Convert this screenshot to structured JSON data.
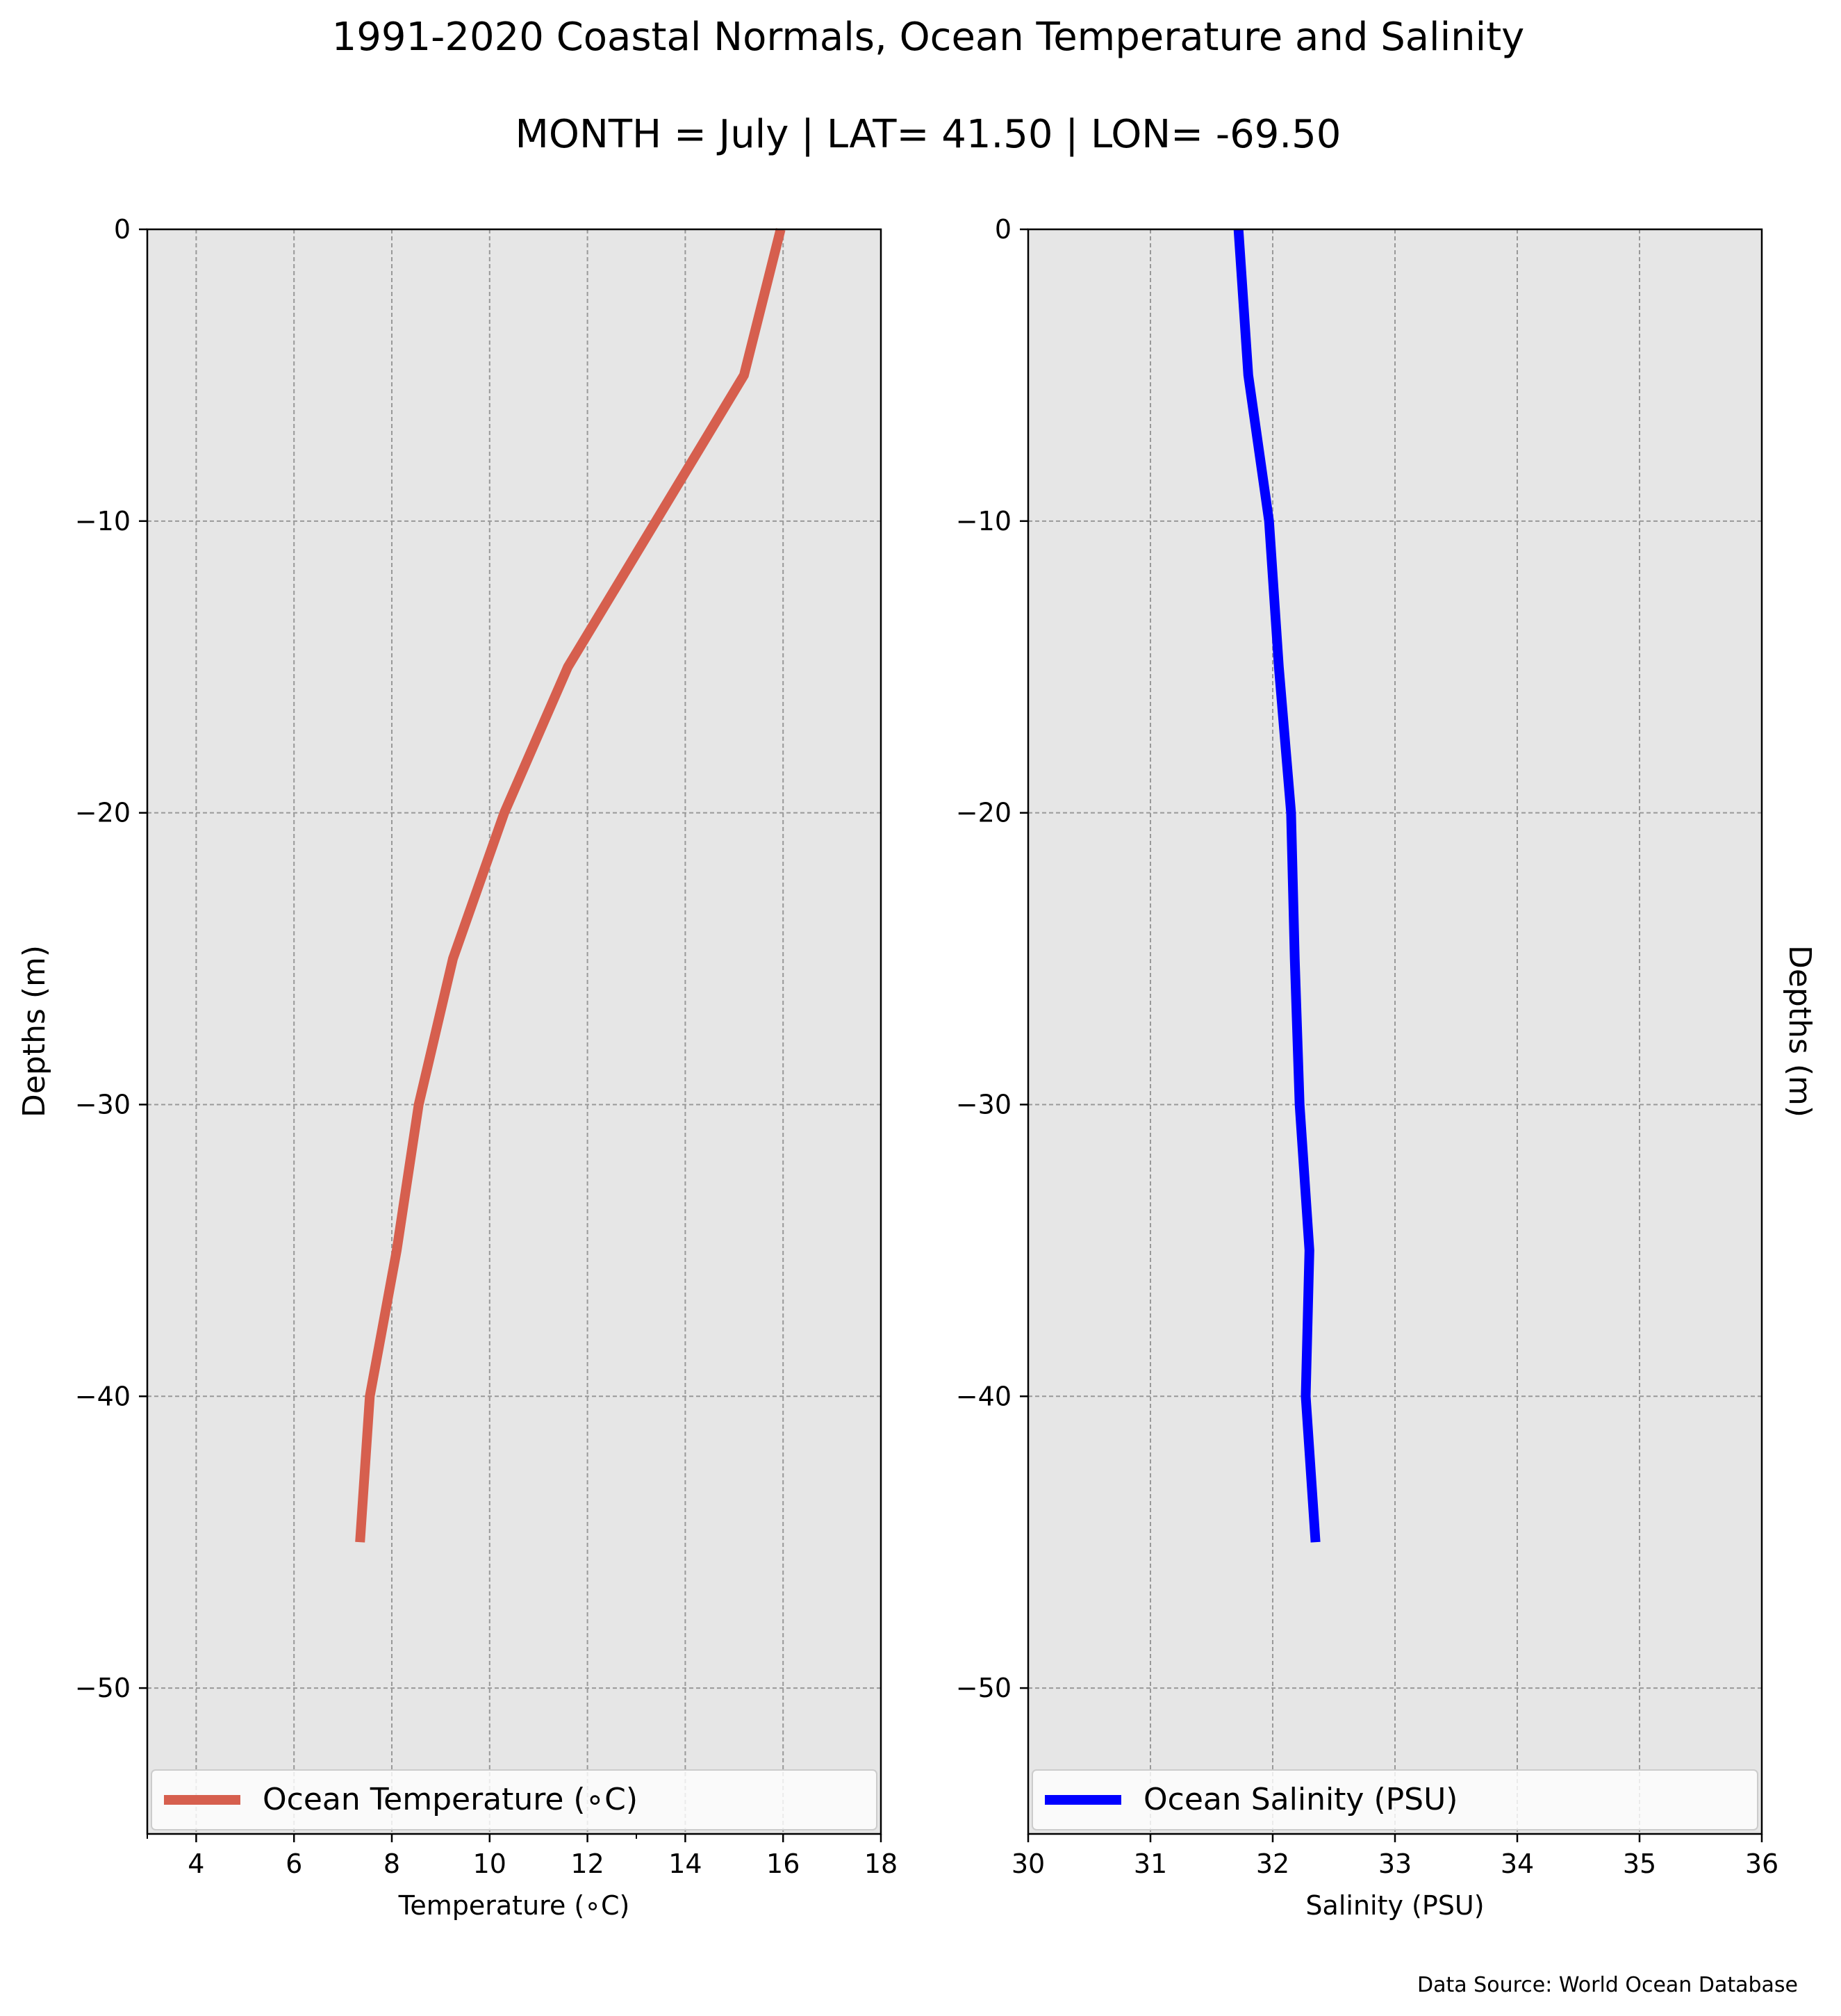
{
  "title": "1991-2020 Coastal Normals, Ocean Temperature and Salinity",
  "subtitle": "MONTH = July | LAT= 41.50 | LON= -69.50",
  "source": "Data Source: World Ocean Database",
  "chart_data": [
    {
      "type": "line",
      "xlabel": "Temperature ($^\\circ$C)",
      "xlabel_display": "Temperature (∘C)",
      "ylabel": "Depths (m)",
      "xlim": [
        3,
        18
      ],
      "ylim": [
        -55,
        0
      ],
      "xticks": [
        4,
        6,
        8,
        10,
        12,
        14,
        16,
        18
      ],
      "yticks": [
        0,
        -10,
        -20,
        -30,
        -40,
        -50
      ],
      "grid": true,
      "legend_position": "bottom",
      "series": [
        {
          "name": "Ocean Temperature (∘C)",
          "color": "#d65f4e",
          "x": [
            15.95,
            15.2,
            13.4,
            11.6,
            10.3,
            9.25,
            8.55,
            8.1,
            7.55,
            7.35
          ],
          "y": [
            0,
            -5,
            -10,
            -15,
            -20,
            -25,
            -30,
            -35,
            -40,
            -45
          ]
        }
      ]
    },
    {
      "type": "line",
      "xlabel": "Salinity (PSU)",
      "ylabel": "Depths (m)",
      "xlim": [
        30,
        36
      ],
      "ylim": [
        -55,
        0
      ],
      "xticks": [
        30,
        31,
        32,
        33,
        34,
        35,
        36
      ],
      "yticks": [
        0,
        -10,
        -20,
        -30,
        -40,
        -50
      ],
      "grid": true,
      "legend_position": "bottom",
      "series": [
        {
          "name": "Ocean Salinity (PSU)",
          "color": "#0000ff",
          "x": [
            31.72,
            31.8,
            31.97,
            32.05,
            32.15,
            32.18,
            32.22,
            32.3,
            32.27,
            32.35
          ],
          "y": [
            0,
            -5,
            -10,
            -15,
            -20,
            -25,
            -30,
            -35,
            -40,
            -45
          ]
        }
      ]
    }
  ]
}
